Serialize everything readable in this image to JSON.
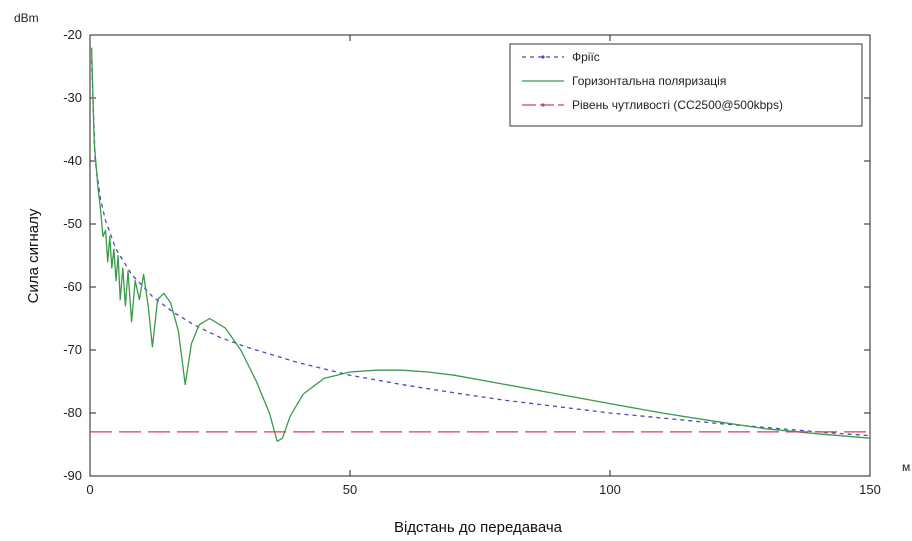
{
  "chart_data": {
    "type": "line",
    "xlabel": "Відстань до передавача",
    "ylabel": "Сила сигналу",
    "y_unit": "dBm",
    "x_unit": "м",
    "xlim": [
      0,
      150
    ],
    "ylim": [
      -90,
      -20
    ],
    "x_ticks": [
      0,
      50,
      100,
      150
    ],
    "y_ticks": [
      -20,
      -30,
      -40,
      -50,
      -60,
      -70,
      -80,
      -90
    ],
    "grid": false,
    "legend_position": "top-right",
    "series": [
      {
        "name": "Фріїс",
        "style": "dashed",
        "color": "#4a4ab8",
        "x": [
          0.3,
          1,
          2,
          3,
          5,
          8,
          12,
          16,
          20,
          25,
          30,
          40,
          50,
          60,
          70,
          80,
          90,
          100,
          110,
          120,
          130,
          140,
          150
        ],
        "y": [
          -24,
          -40,
          -46,
          -49.5,
          -54,
          -58,
          -61.5,
          -64,
          -66,
          -68,
          -69.5,
          -72,
          -74,
          -75.5,
          -76.8,
          -78,
          -79,
          -80,
          -80.8,
          -81.6,
          -82.3,
          -83,
          -83.6
        ]
      },
      {
        "name": "Горизонтальна поляризація",
        "style": "solid",
        "color": "#3a9a4a",
        "x": [
          0.3,
          0.8,
          1.5,
          2,
          2.5,
          3,
          3.4,
          3.8,
          4.2,
          4.6,
          5.0,
          5.4,
          5.8,
          6.3,
          6.8,
          7.3,
          8.0,
          8.7,
          9.5,
          10.3,
          11.2,
          12.0,
          13.0,
          14.2,
          15.5,
          17.0,
          18.3,
          19.5,
          21.0,
          23.0,
          26.0,
          29.0,
          32.0,
          34.5,
          36.0,
          37.0,
          38.5,
          41.0,
          45.0,
          50.0,
          55.0,
          60.0,
          65.0,
          70.0,
          80.0,
          90.0,
          100.0,
          110.0,
          120.0,
          130.0,
          140.0,
          150.0
        ],
        "y": [
          -22,
          -37,
          -44,
          -47.5,
          -52,
          -51,
          -56,
          -52,
          -57,
          -54,
          -59,
          -55,
          -62,
          -57,
          -63,
          -57.5,
          -65.5,
          -59,
          -62,
          -58,
          -63,
          -69.5,
          -62,
          -61,
          -62.5,
          -67,
          -75.5,
          -69,
          -66,
          -65,
          -66.5,
          -70,
          -75,
          -80,
          -84.5,
          -84,
          -80.5,
          -77,
          -74.5,
          -73.5,
          -73.2,
          -73.2,
          -73.5,
          -74,
          -75.5,
          -77,
          -78.5,
          -80,
          -81.3,
          -82.5,
          -83.3,
          -84
        ]
      },
      {
        "name": "Рівень чутливості (CC2500@500kbps)",
        "style": "long-dash",
        "color": "#d0405a",
        "x": [
          0,
          150
        ],
        "y": [
          -83,
          -83
        ]
      }
    ]
  }
}
